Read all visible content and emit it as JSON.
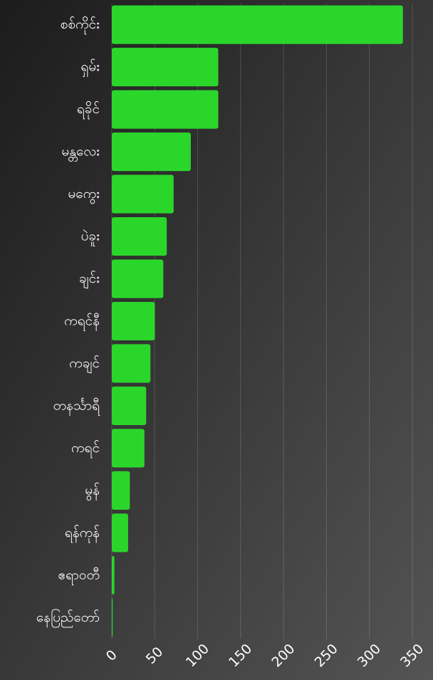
{
  "chart_data": {
    "type": "bar",
    "orientation": "horizontal",
    "categories": [
      "စစ်ကိုင်း",
      "ရှမ်း",
      "ရခိုင်",
      "မန္တလေး",
      "မကွေး",
      "ပဲခူး",
      "ချင်း",
      "ကရင်နီ",
      "ကချင်",
      "တနင်္သာရီ",
      "ကရင်",
      "မွန်",
      "ရန်ကုန်",
      "ဧရာဝတီ",
      "နေပြည်တော်"
    ],
    "values": [
      339,
      124,
      124,
      92,
      72,
      64,
      60,
      50,
      45,
      40,
      38,
      21,
      19,
      3,
      1
    ],
    "color": "#2bd62b",
    "xlim": [
      0,
      350
    ],
    "xticks": [
      0,
      50,
      100,
      150,
      200,
      250,
      300,
      350
    ],
    "grid": true
  }
}
